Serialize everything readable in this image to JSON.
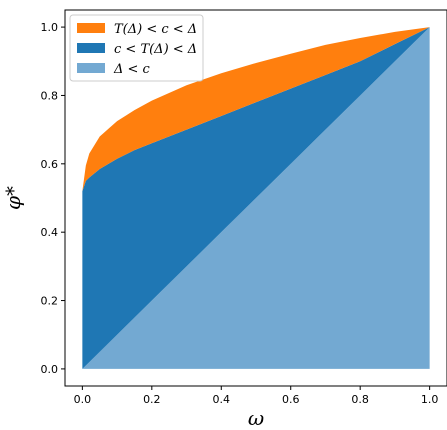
{
  "chart_data": {
    "type": "area",
    "title": "",
    "xlabel": "ω",
    "ylabel": "φ*",
    "xlim": [
      -0.05,
      1.05
    ],
    "ylim": [
      -0.05,
      1.05
    ],
    "x_ticks": [
      0.0,
      0.2,
      0.4,
      0.6,
      0.8,
      1.0
    ],
    "y_ticks": [
      0.0,
      0.2,
      0.4,
      0.6,
      0.8,
      1.0
    ],
    "x_tick_labels": [
      "0.0",
      "0.2",
      "0.4",
      "0.6",
      "0.8",
      "1.0"
    ],
    "y_tick_labels": [
      "0.0",
      "0.2",
      "0.4",
      "0.6",
      "0.8",
      "1.0"
    ],
    "grid": false,
    "legend_position": "top-left",
    "x": [
      0.0,
      0.01,
      0.02,
      0.05,
      0.1,
      0.15,
      0.2,
      0.3,
      0.4,
      0.5,
      0.6,
      0.7,
      0.8,
      0.9,
      1.0
    ],
    "series": [
      {
        "name": "T(Δ) < c < Δ",
        "color": "#ff7f0e",
        "lower": [
          0.52,
          0.55,
          0.56,
          0.585,
          0.615,
          0.64,
          0.66,
          0.7,
          0.74,
          0.78,
          0.82,
          0.86,
          0.9,
          0.95,
          1.0
        ],
        "upper": [
          0.52,
          0.595,
          0.63,
          0.68,
          0.725,
          0.757,
          0.785,
          0.83,
          0.865,
          0.895,
          0.922,
          0.948,
          0.968,
          0.986,
          1.0
        ]
      },
      {
        "name": "c < T(Δ) < Δ",
        "color": "#1f77b4",
        "lower": [
          0.0,
          0.01,
          0.02,
          0.05,
          0.1,
          0.15,
          0.2,
          0.3,
          0.4,
          0.5,
          0.6,
          0.7,
          0.8,
          0.9,
          1.0
        ],
        "upper": [
          0.52,
          0.55,
          0.56,
          0.585,
          0.615,
          0.64,
          0.66,
          0.7,
          0.74,
          0.78,
          0.82,
          0.86,
          0.9,
          0.95,
          1.0
        ]
      },
      {
        "name": "Δ < c",
        "color": "#73a9d2",
        "lower": [
          0.0,
          0.0,
          0.0,
          0.0,
          0.0,
          0.0,
          0.0,
          0.0,
          0.0,
          0.0,
          0.0,
          0.0,
          0.0,
          0.0,
          0.0
        ],
        "upper": [
          0.0,
          0.01,
          0.02,
          0.05,
          0.1,
          0.15,
          0.2,
          0.3,
          0.4,
          0.5,
          0.6,
          0.7,
          0.8,
          0.9,
          1.0
        ]
      }
    ]
  }
}
